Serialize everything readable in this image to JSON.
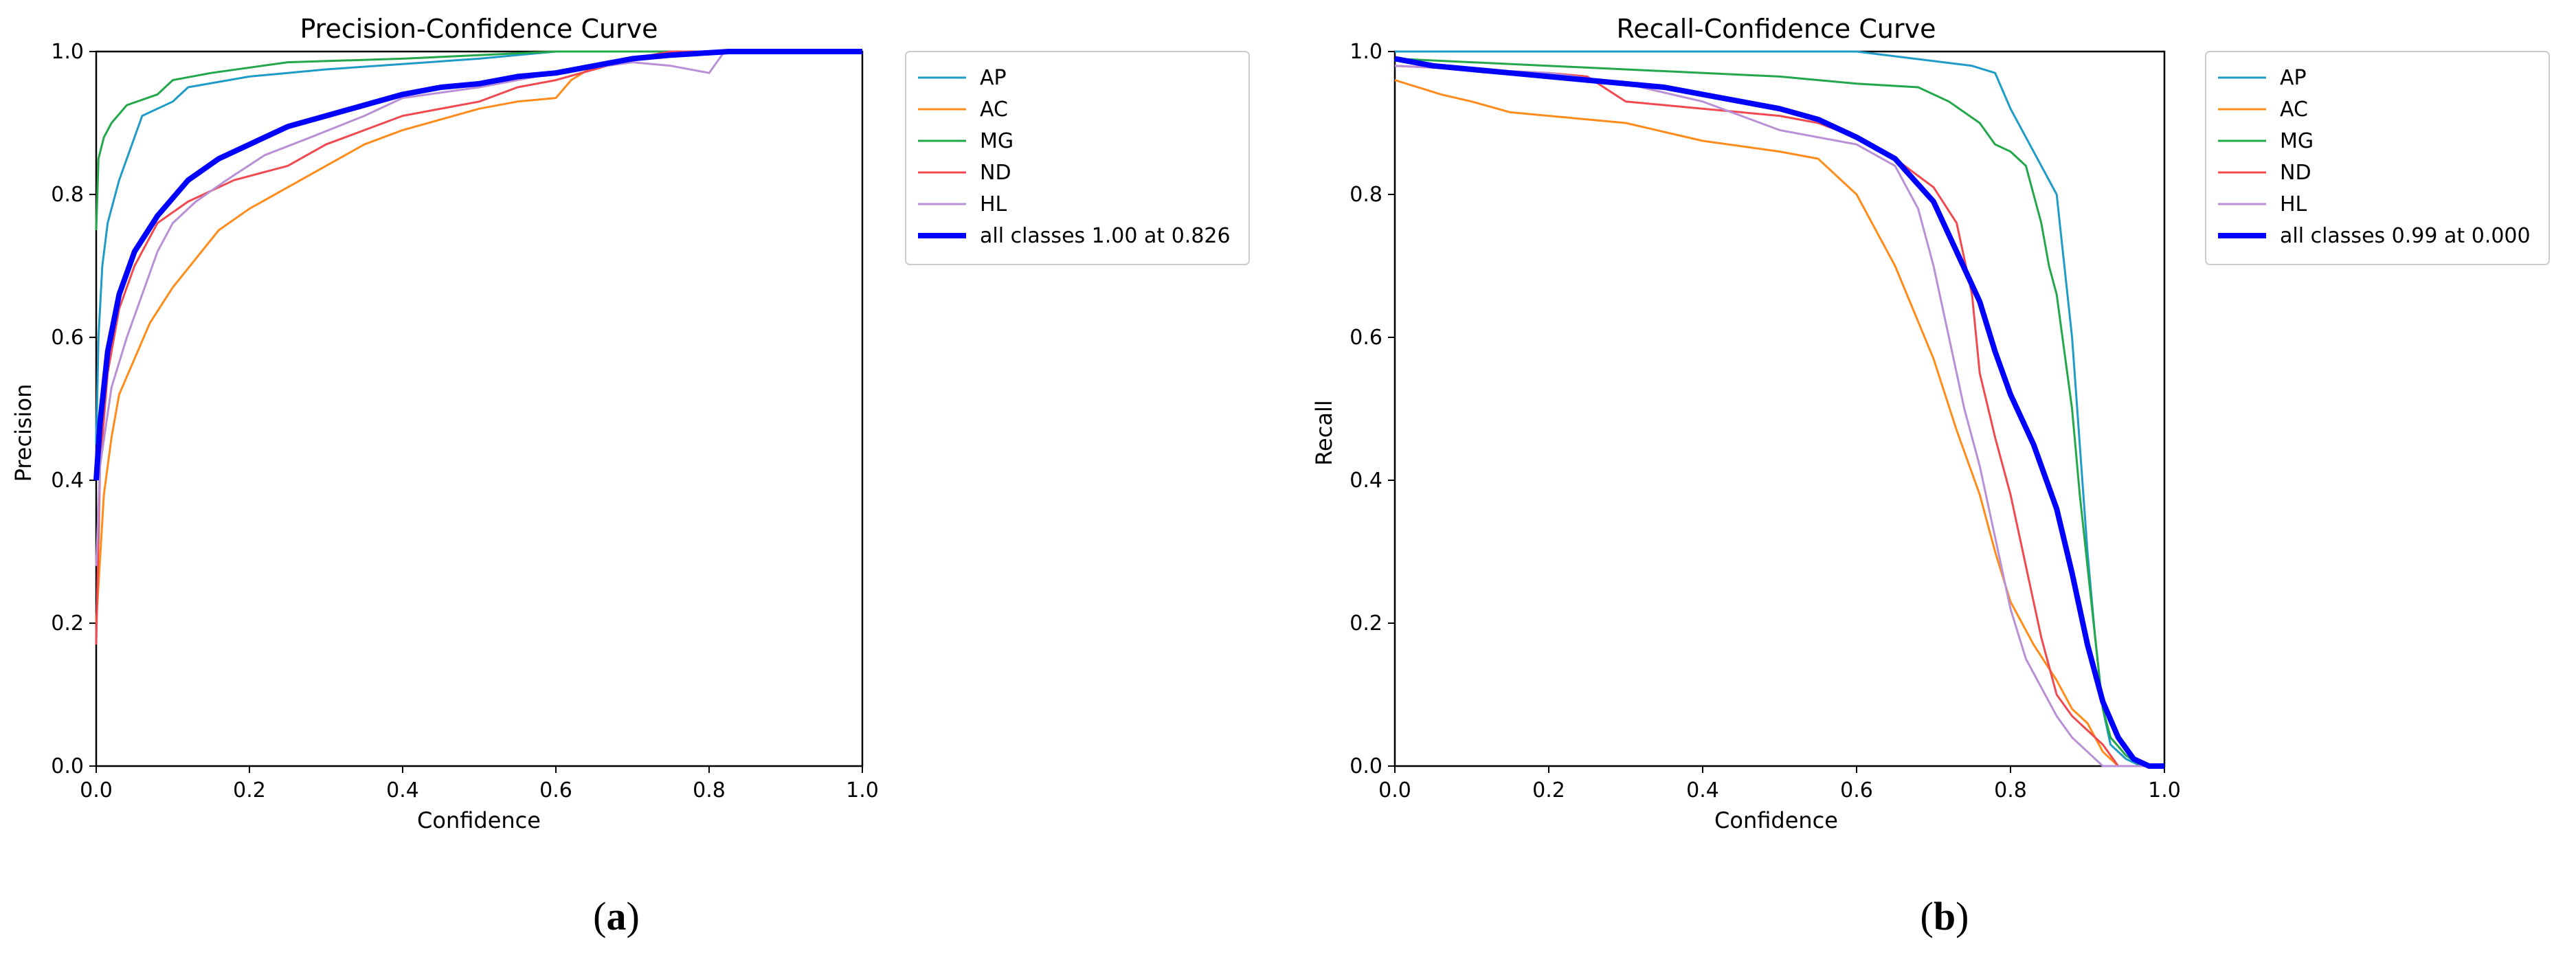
{
  "chart_data": [
    {
      "type": "line",
      "title": "Precision-Confidence Curve",
      "xlabel": "Confidence",
      "ylabel": "Precision",
      "xlim": [
        0,
        1
      ],
      "ylim": [
        0,
        1
      ],
      "x_ticks": [
        "0.0",
        "0.2",
        "0.4",
        "0.6",
        "0.8",
        "1.0"
      ],
      "y_ticks": [
        "0.0",
        "0.2",
        "0.4",
        "0.6",
        "0.8",
        "1.0"
      ],
      "grid": false,
      "legend_position": "outside-right",
      "panel_label": "a",
      "series": [
        {
          "name": "AP",
          "color": "#1f9bc7",
          "width": 3,
          "points": [
            [
              0,
              0.45
            ],
            [
              0.003,
              0.6
            ],
            [
              0.008,
              0.7
            ],
            [
              0.015,
              0.76
            ],
            [
              0.03,
              0.82
            ],
            [
              0.05,
              0.88
            ],
            [
              0.06,
              0.91
            ],
            [
              0.08,
              0.92
            ],
            [
              0.1,
              0.93
            ],
            [
              0.12,
              0.95
            ],
            [
              0.2,
              0.965
            ],
            [
              0.3,
              0.975
            ],
            [
              0.5,
              0.99
            ],
            [
              0.6,
              1.0
            ],
            [
              1.0,
              1.0
            ]
          ]
        },
        {
          "name": "AC",
          "color": "#ff8c1a",
          "width": 3,
          "points": [
            [
              0,
              0.2
            ],
            [
              0.01,
              0.38
            ],
            [
              0.02,
              0.46
            ],
            [
              0.03,
              0.52
            ],
            [
              0.05,
              0.57
            ],
            [
              0.07,
              0.62
            ],
            [
              0.1,
              0.67
            ],
            [
              0.13,
              0.71
            ],
            [
              0.16,
              0.75
            ],
            [
              0.2,
              0.78
            ],
            [
              0.25,
              0.81
            ],
            [
              0.3,
              0.84
            ],
            [
              0.35,
              0.87
            ],
            [
              0.4,
              0.89
            ],
            [
              0.45,
              0.905
            ],
            [
              0.5,
              0.92
            ],
            [
              0.55,
              0.93
            ],
            [
              0.6,
              0.935
            ],
            [
              0.62,
              0.96
            ],
            [
              0.65,
              0.98
            ],
            [
              0.7,
              0.99
            ],
            [
              0.75,
              1.0
            ],
            [
              1.0,
              1.0
            ]
          ]
        },
        {
          "name": "MG",
          "color": "#22a84a",
          "width": 3,
          "points": [
            [
              0,
              0.75
            ],
            [
              0.003,
              0.85
            ],
            [
              0.01,
              0.88
            ],
            [
              0.02,
              0.9
            ],
            [
              0.04,
              0.925
            ],
            [
              0.08,
              0.94
            ],
            [
              0.1,
              0.96
            ],
            [
              0.15,
              0.97
            ],
            [
              0.25,
              0.985
            ],
            [
              0.4,
              0.99
            ],
            [
              0.5,
              0.995
            ],
            [
              0.6,
              1.0
            ],
            [
              1.0,
              1.0
            ]
          ]
        },
        {
          "name": "ND",
          "color": "#f04a50",
          "width": 3,
          "points": [
            [
              0,
              0.17
            ],
            [
              0.005,
              0.42
            ],
            [
              0.015,
              0.55
            ],
            [
              0.03,
              0.64
            ],
            [
              0.05,
              0.7
            ],
            [
              0.08,
              0.76
            ],
            [
              0.12,
              0.79
            ],
            [
              0.18,
              0.82
            ],
            [
              0.25,
              0.84
            ],
            [
              0.3,
              0.87
            ],
            [
              0.35,
              0.89
            ],
            [
              0.4,
              0.91
            ],
            [
              0.5,
              0.93
            ],
            [
              0.55,
              0.95
            ],
            [
              0.6,
              0.96
            ],
            [
              0.65,
              0.975
            ],
            [
              0.7,
              0.99
            ],
            [
              0.75,
              1.0
            ],
            [
              1.0,
              1.0
            ]
          ]
        },
        {
          "name": "HL",
          "color": "#b98fd6",
          "width": 3,
          "points": [
            [
              0,
              0.28
            ],
            [
              0.005,
              0.42
            ],
            [
              0.02,
              0.53
            ],
            [
              0.04,
              0.6
            ],
            [
              0.06,
              0.66
            ],
            [
              0.08,
              0.72
            ],
            [
              0.1,
              0.76
            ],
            [
              0.13,
              0.79
            ],
            [
              0.17,
              0.82
            ],
            [
              0.22,
              0.855
            ],
            [
              0.28,
              0.88
            ],
            [
              0.35,
              0.91
            ],
            [
              0.4,
              0.935
            ],
            [
              0.5,
              0.95
            ],
            [
              0.6,
              0.97
            ],
            [
              0.7,
              0.985
            ],
            [
              0.75,
              0.98
            ],
            [
              0.8,
              0.97
            ],
            [
              0.82,
              1.0
            ],
            [
              1.0,
              1.0
            ]
          ]
        },
        {
          "name": "all classes 1.00 at 0.826",
          "color": "#0000ff",
          "width": 8,
          "points": [
            [
              0,
              0.4
            ],
            [
              0.005,
              0.48
            ],
            [
              0.015,
              0.58
            ],
            [
              0.03,
              0.66
            ],
            [
              0.05,
              0.72
            ],
            [
              0.08,
              0.77
            ],
            [
              0.12,
              0.82
            ],
            [
              0.16,
              0.85
            ],
            [
              0.2,
              0.87
            ],
            [
              0.25,
              0.895
            ],
            [
              0.3,
              0.91
            ],
            [
              0.35,
              0.925
            ],
            [
              0.4,
              0.94
            ],
            [
              0.45,
              0.95
            ],
            [
              0.5,
              0.955
            ],
            [
              0.55,
              0.965
            ],
            [
              0.6,
              0.97
            ],
            [
              0.65,
              0.98
            ],
            [
              0.7,
              0.99
            ],
            [
              0.75,
              0.995
            ],
            [
              0.826,
              1.0
            ],
            [
              1.0,
              1.0
            ]
          ]
        }
      ]
    },
    {
      "type": "line",
      "title": "Recall-Confidence Curve",
      "xlabel": "Confidence",
      "ylabel": "Recall",
      "xlim": [
        0,
        1
      ],
      "ylim": [
        0,
        1
      ],
      "x_ticks": [
        "0.0",
        "0.2",
        "0.4",
        "0.6",
        "0.8",
        "1.0"
      ],
      "y_ticks": [
        "0.0",
        "0.2",
        "0.4",
        "0.6",
        "0.8",
        "1.0"
      ],
      "grid": false,
      "legend_position": "outside-right",
      "panel_label": "b",
      "series": [
        {
          "name": "AP",
          "color": "#1f9bc7",
          "width": 3,
          "points": [
            [
              0,
              1.0
            ],
            [
              0.6,
              1.0
            ],
            [
              0.75,
              0.98
            ],
            [
              0.78,
              0.97
            ],
            [
              0.8,
              0.92
            ],
            [
              0.82,
              0.88
            ],
            [
              0.84,
              0.84
            ],
            [
              0.86,
              0.8
            ],
            [
              0.87,
              0.7
            ],
            [
              0.88,
              0.6
            ],
            [
              0.89,
              0.45
            ],
            [
              0.9,
              0.3
            ],
            [
              0.91,
              0.18
            ],
            [
              0.92,
              0.08
            ],
            [
              0.93,
              0.03
            ],
            [
              0.95,
              0.01
            ],
            [
              0.97,
              0.0
            ],
            [
              1.0,
              0.0
            ]
          ]
        },
        {
          "name": "AC",
          "color": "#ff8c1a",
          "width": 3,
          "points": [
            [
              0,
              0.96
            ],
            [
              0.03,
              0.95
            ],
            [
              0.06,
              0.94
            ],
            [
              0.1,
              0.93
            ],
            [
              0.15,
              0.915
            ],
            [
              0.2,
              0.91
            ],
            [
              0.3,
              0.9
            ],
            [
              0.4,
              0.875
            ],
            [
              0.5,
              0.86
            ],
            [
              0.55,
              0.85
            ],
            [
              0.6,
              0.8
            ],
            [
              0.65,
              0.7
            ],
            [
              0.7,
              0.57
            ],
            [
              0.73,
              0.47
            ],
            [
              0.76,
              0.38
            ],
            [
              0.78,
              0.3
            ],
            [
              0.8,
              0.23
            ],
            [
              0.83,
              0.17
            ],
            [
              0.86,
              0.12
            ],
            [
              0.88,
              0.08
            ],
            [
              0.9,
              0.06
            ],
            [
              0.92,
              0.02
            ],
            [
              0.94,
              0.0
            ],
            [
              1.0,
              0.0
            ]
          ]
        },
        {
          "name": "MG",
          "color": "#22a84a",
          "width": 3,
          "points": [
            [
              0,
              0.99
            ],
            [
              0.1,
              0.985
            ],
            [
              0.3,
              0.975
            ],
            [
              0.5,
              0.965
            ],
            [
              0.6,
              0.955
            ],
            [
              0.68,
              0.95
            ],
            [
              0.72,
              0.93
            ],
            [
              0.76,
              0.9
            ],
            [
              0.78,
              0.87
            ],
            [
              0.8,
              0.86
            ],
            [
              0.82,
              0.84
            ],
            [
              0.84,
              0.76
            ],
            [
              0.85,
              0.7
            ],
            [
              0.86,
              0.66
            ],
            [
              0.87,
              0.58
            ],
            [
              0.88,
              0.5
            ],
            [
              0.89,
              0.38
            ],
            [
              0.9,
              0.28
            ],
            [
              0.91,
              0.18
            ],
            [
              0.92,
              0.08
            ],
            [
              0.93,
              0.04
            ],
            [
              0.95,
              0.015
            ],
            [
              0.97,
              0.0
            ],
            [
              1.0,
              0.0
            ]
          ]
        },
        {
          "name": "ND",
          "color": "#f04a50",
          "width": 3,
          "points": [
            [
              0,
              0.98
            ],
            [
              0.1,
              0.975
            ],
            [
              0.2,
              0.97
            ],
            [
              0.25,
              0.965
            ],
            [
              0.3,
              0.93
            ],
            [
              0.4,
              0.92
            ],
            [
              0.5,
              0.91
            ],
            [
              0.55,
              0.9
            ],
            [
              0.6,
              0.88
            ],
            [
              0.65,
              0.85
            ],
            [
              0.7,
              0.81
            ],
            [
              0.73,
              0.76
            ],
            [
              0.75,
              0.66
            ],
            [
              0.76,
              0.55
            ],
            [
              0.78,
              0.46
            ],
            [
              0.8,
              0.38
            ],
            [
              0.82,
              0.28
            ],
            [
              0.84,
              0.18
            ],
            [
              0.86,
              0.1
            ],
            [
              0.88,
              0.07
            ],
            [
              0.9,
              0.05
            ],
            [
              0.92,
              0.03
            ],
            [
              0.94,
              0.0
            ],
            [
              1.0,
              0.0
            ]
          ]
        },
        {
          "name": "HL",
          "color": "#b98fd6",
          "width": 3,
          "points": [
            [
              0,
              0.98
            ],
            [
              0.1,
              0.975
            ],
            [
              0.2,
              0.97
            ],
            [
              0.3,
              0.955
            ],
            [
              0.4,
              0.93
            ],
            [
              0.45,
              0.91
            ],
            [
              0.5,
              0.89
            ],
            [
              0.55,
              0.88
            ],
            [
              0.6,
              0.87
            ],
            [
              0.65,
              0.84
            ],
            [
              0.68,
              0.78
            ],
            [
              0.7,
              0.7
            ],
            [
              0.72,
              0.6
            ],
            [
              0.74,
              0.5
            ],
            [
              0.76,
              0.42
            ],
            [
              0.78,
              0.32
            ],
            [
              0.8,
              0.22
            ],
            [
              0.82,
              0.15
            ],
            [
              0.84,
              0.11
            ],
            [
              0.86,
              0.07
            ],
            [
              0.88,
              0.04
            ],
            [
              0.9,
              0.02
            ],
            [
              0.92,
              0.0
            ],
            [
              1.0,
              0.0
            ]
          ]
        },
        {
          "name": "all classes 0.99 at 0.000",
          "color": "#0000ff",
          "width": 8,
          "points": [
            [
              0,
              0.99
            ],
            [
              0.05,
              0.98
            ],
            [
              0.1,
              0.975
            ],
            [
              0.15,
              0.97
            ],
            [
              0.2,
              0.965
            ],
            [
              0.25,
              0.96
            ],
            [
              0.3,
              0.955
            ],
            [
              0.35,
              0.95
            ],
            [
              0.4,
              0.94
            ],
            [
              0.45,
              0.93
            ],
            [
              0.5,
              0.92
            ],
            [
              0.55,
              0.905
            ],
            [
              0.6,
              0.88
            ],
            [
              0.65,
              0.85
            ],
            [
              0.7,
              0.79
            ],
            [
              0.73,
              0.72
            ],
            [
              0.76,
              0.65
            ],
            [
              0.78,
              0.58
            ],
            [
              0.8,
              0.52
            ],
            [
              0.83,
              0.45
            ],
            [
              0.86,
              0.36
            ],
            [
              0.88,
              0.27
            ],
            [
              0.9,
              0.17
            ],
            [
              0.92,
              0.09
            ],
            [
              0.94,
              0.04
            ],
            [
              0.96,
              0.01
            ],
            [
              0.98,
              0.0
            ],
            [
              1.0,
              0.0
            ]
          ]
        }
      ]
    }
  ]
}
